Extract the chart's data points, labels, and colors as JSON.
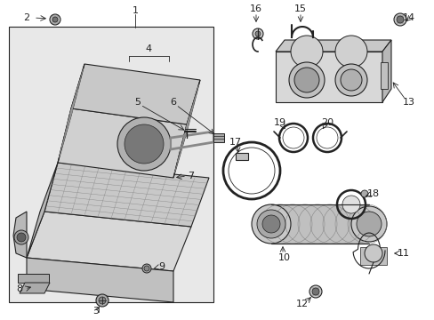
{
  "figsize": [
    4.89,
    3.6
  ],
  "dpi": 100,
  "bg": "#ffffff",
  "box_bg": "#e8e8e8",
  "lc": "#222222",
  "lw": 0.8
}
